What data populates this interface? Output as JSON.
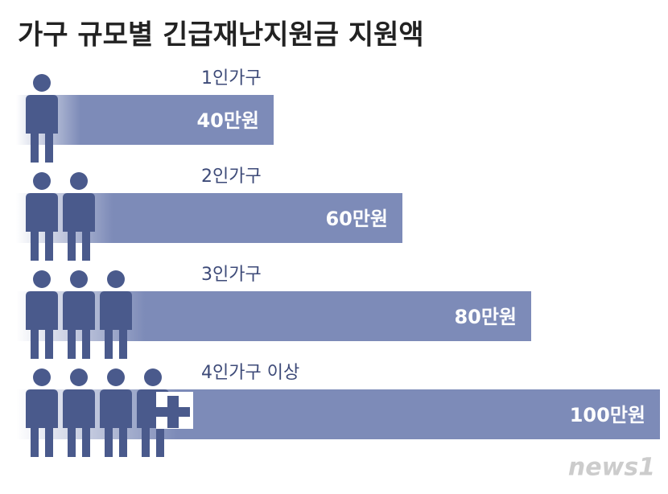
{
  "chart_data": {
    "type": "bar",
    "title": "가구 규모별 긴급재난지원금 지원액",
    "categories": [
      "1인가구",
      "2인가구",
      "3인가구",
      "4인가구 이상"
    ],
    "values": [
      40,
      60,
      80,
      100
    ],
    "value_labels": [
      "40만원",
      "60만원",
      "80만원",
      "100만원"
    ],
    "color": "#7d8bb8",
    "source": "news1"
  }
}
